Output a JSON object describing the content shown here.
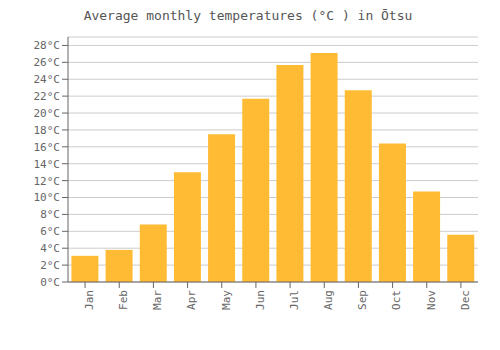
{
  "chart_data": {
    "type": "bar",
    "title": "Average monthly temperatures (°C ) in Ōtsu",
    "categories": [
      "Jan",
      "Feb",
      "Mar",
      "Apr",
      "May",
      "Jun",
      "Jul",
      "Aug",
      "Sep",
      "Oct",
      "Nov",
      "Dec"
    ],
    "values": [
      3.1,
      3.8,
      6.8,
      13.0,
      17.5,
      21.7,
      25.7,
      27.1,
      22.7,
      16.4,
      10.7,
      5.6
    ],
    "color": "#FFBB33",
    "ylim": [
      0,
      29
    ],
    "yticks": [
      {
        "value": 0,
        "label": "0°C"
      },
      {
        "value": 2,
        "label": "2°C"
      },
      {
        "value": 4,
        "label": "4°C"
      },
      {
        "value": 6,
        "label": "6°C"
      },
      {
        "value": 8,
        "label": "8°C"
      },
      {
        "value": 10,
        "label": "10°C"
      },
      {
        "value": 12,
        "label": "12°C"
      },
      {
        "value": 14,
        "label": "14°C"
      },
      {
        "value": 16,
        "label": "16°C"
      },
      {
        "value": 18,
        "label": "18°C"
      },
      {
        "value": 20,
        "label": "20°C"
      },
      {
        "value": 22,
        "label": "22°C"
      },
      {
        "value": 24,
        "label": "24°C"
      },
      {
        "value": 26,
        "label": "26°C"
      },
      {
        "value": 28,
        "label": "28°C"
      }
    ],
    "grid": true
  }
}
